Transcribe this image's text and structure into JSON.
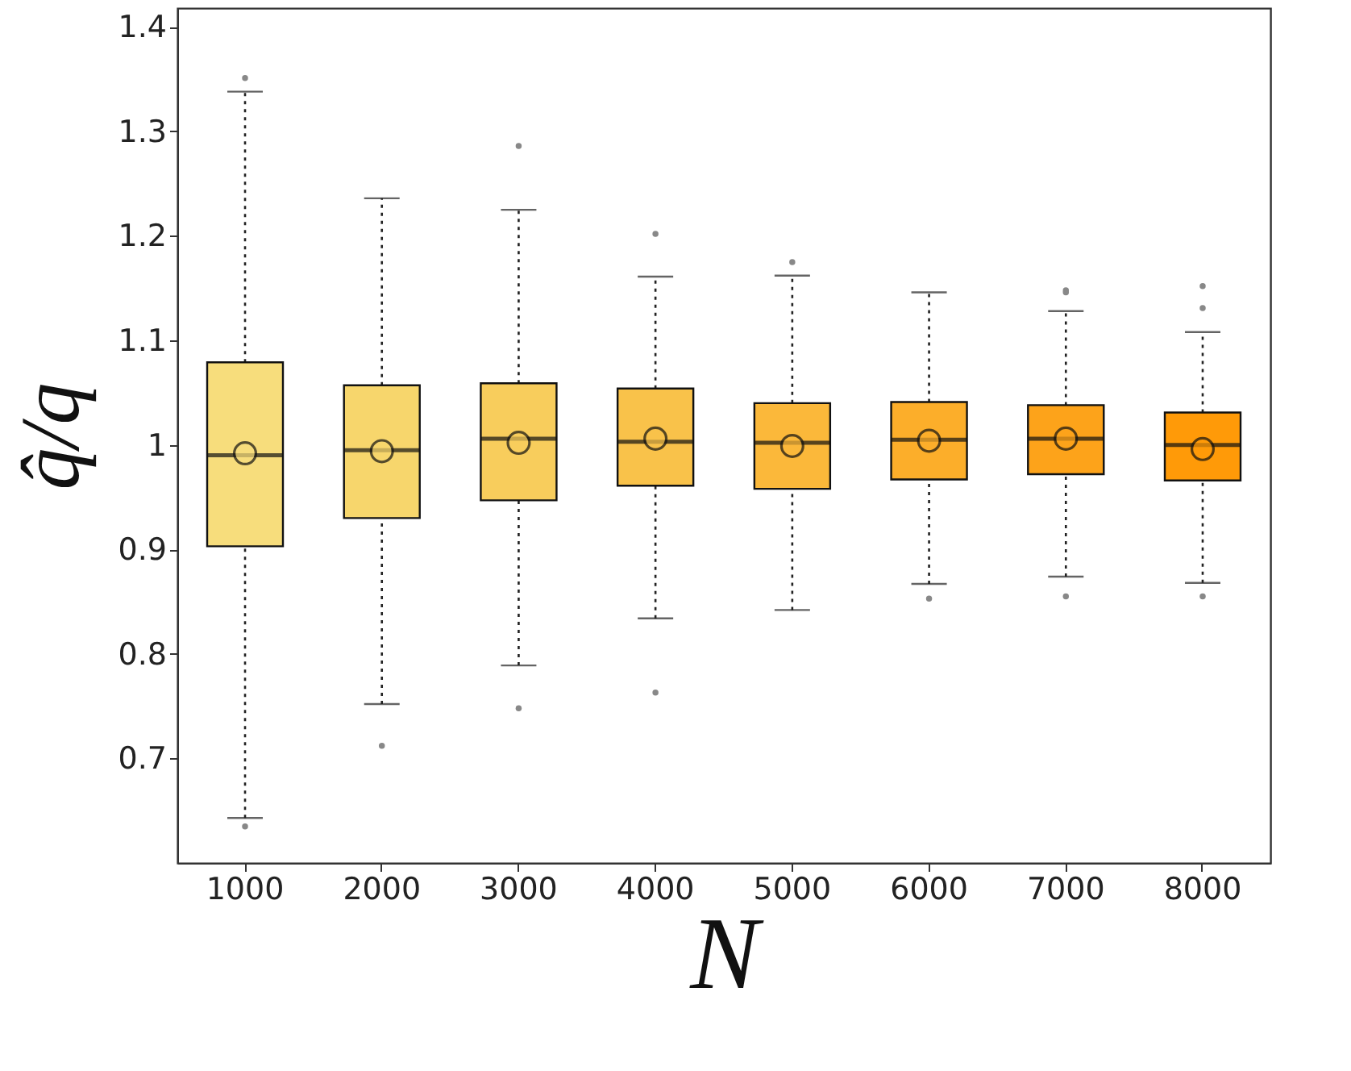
{
  "chart_data": {
    "type": "box",
    "xlabel": "N",
    "ylabel": "q̂/q",
    "categories": [
      "1000",
      "2000",
      "3000",
      "4000",
      "5000",
      "6000",
      "7000",
      "8000"
    ],
    "colors": [
      "#f7dd7c",
      "#f7d66c",
      "#f8cd5c",
      "#f9c24a",
      "#fbb83a",
      "#fcae2a",
      "#fda31a",
      "#ff9a08"
    ],
    "boxes": [
      {
        "low": 0.643,
        "q1": 0.903,
        "median": 0.99,
        "q3": 1.079,
        "high": 1.338,
        "mean": 0.992,
        "outliers": [
          1.351,
          0.635
        ]
      },
      {
        "low": 0.752,
        "q1": 0.93,
        "median": 0.995,
        "q3": 1.057,
        "high": 1.236,
        "mean": 0.994,
        "outliers": [
          0.712
        ]
      },
      {
        "low": 0.789,
        "q1": 0.947,
        "median": 1.006,
        "q3": 1.059,
        "high": 1.225,
        "mean": 1.002,
        "outliers": [
          1.286,
          0.748
        ]
      },
      {
        "low": 0.834,
        "q1": 0.961,
        "median": 1.003,
        "q3": 1.054,
        "high": 1.161,
        "mean": 1.006,
        "outliers": [
          1.202,
          0.763
        ]
      },
      {
        "low": 0.842,
        "q1": 0.958,
        "median": 1.002,
        "q3": 1.04,
        "high": 1.162,
        "mean": 0.999,
        "outliers": [
          1.175
        ]
      },
      {
        "low": 0.867,
        "q1": 0.967,
        "median": 1.005,
        "q3": 1.041,
        "high": 1.146,
        "mean": 1.004,
        "outliers": [
          0.853
        ]
      },
      {
        "low": 0.874,
        "q1": 0.972,
        "median": 1.006,
        "q3": 1.038,
        "high": 1.128,
        "mean": 1.006,
        "outliers": [
          1.148,
          1.146,
          0.855
        ]
      },
      {
        "low": 0.868,
        "q1": 0.966,
        "median": 1.0,
        "q3": 1.031,
        "high": 1.108,
        "mean": 0.996,
        "outliers": [
          1.152,
          1.131,
          0.855
        ]
      }
    ],
    "ylim": [
      0.6,
      1.418
    ],
    "yticks": [
      0.7,
      0.8,
      0.9,
      1,
      1.1,
      1.2,
      1.3,
      1.4
    ],
    "grid": false,
    "legend": false
  }
}
